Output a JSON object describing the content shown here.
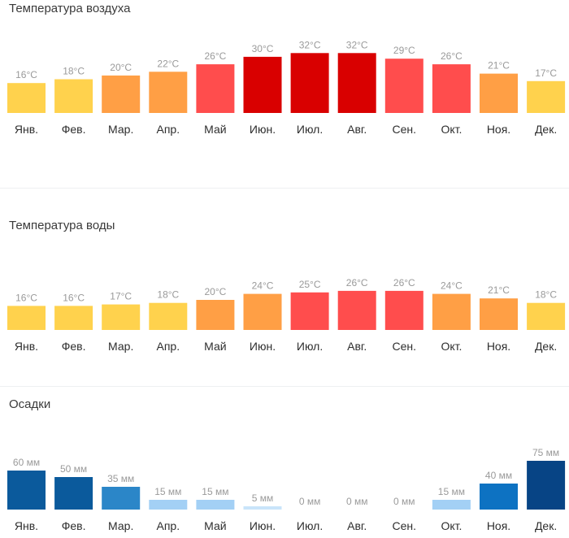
{
  "chart_data": [
    {
      "type": "bar",
      "title": "Температура воздуха",
      "categories": [
        "Янв.",
        "Фев.",
        "Мар.",
        "Апр.",
        "Май",
        "Июн.",
        "Июл.",
        "Авг.",
        "Сен.",
        "Окт.",
        "Ноя.",
        "Дек."
      ],
      "values": [
        16,
        18,
        20,
        22,
        26,
        30,
        32,
        32,
        29,
        26,
        21,
        17
      ],
      "labels": [
        "16°C",
        "18°C",
        "20°C",
        "22°C",
        "26°C",
        "30°C",
        "32°C",
        "32°C",
        "29°C",
        "26°C",
        "21°C",
        "17°C"
      ],
      "unit": "°C",
      "colors": [
        "#ffd24d",
        "#ffd24d",
        "#ff9f45",
        "#ff9f45",
        "#ff4d4d",
        "#d90000",
        "#d90000",
        "#d90000",
        "#ff4d4d",
        "#ff4d4d",
        "#ff9f45",
        "#ffd24d"
      ],
      "ylim": [
        0,
        33
      ]
    },
    {
      "type": "bar",
      "title": "Температура воды",
      "categories": [
        "Янв.",
        "Фев.",
        "Мар.",
        "Апр.",
        "Май",
        "Июн.",
        "Июл.",
        "Авг.",
        "Сен.",
        "Окт.",
        "Ноя.",
        "Дек."
      ],
      "values": [
        16,
        16,
        17,
        18,
        20,
        24,
        25,
        26,
        26,
        24,
        21,
        18
      ],
      "labels": [
        "16°C",
        "16°C",
        "17°C",
        "18°C",
        "20°C",
        "24°C",
        "25°C",
        "26°C",
        "26°C",
        "24°C",
        "21°C",
        "18°C"
      ],
      "unit": "°C",
      "colors": [
        "#ffd24d",
        "#ffd24d",
        "#ffd24d",
        "#ffd24d",
        "#ff9f45",
        "#ff9f45",
        "#ff4d4d",
        "#ff4d4d",
        "#ff4d4d",
        "#ff9f45",
        "#ff9f45",
        "#ffd24d"
      ],
      "ylim": [
        0,
        33
      ]
    },
    {
      "type": "bar",
      "title": "Осадки",
      "categories": [
        "Янв.",
        "Фев.",
        "Мар.",
        "Апр.",
        "Май",
        "Июн.",
        "Июл.",
        "Авг.",
        "Сен.",
        "Окт.",
        "Ноя.",
        "Дек."
      ],
      "values": [
        60,
        50,
        35,
        15,
        15,
        5,
        0,
        0,
        0,
        15,
        40,
        75
      ],
      "labels": [
        "60 мм",
        "50 мм",
        "35 мм",
        "15 мм",
        "15 мм",
        "5 мм",
        "0 мм",
        "0 мм",
        "0 мм",
        "15 мм",
        "40 мм",
        "75 мм"
      ],
      "unit": "мм",
      "colors": [
        "#0b5a9c",
        "#0b5a9c",
        "#2b86c8",
        "#a3d0f5",
        "#a3d0f5",
        "#c9e4fa",
        "#c9e4fa",
        "#c9e4fa",
        "#c9e4fa",
        "#a3d0f5",
        "#0d72c2",
        "#074485"
      ],
      "ylim": [
        0,
        75
      ]
    }
  ]
}
